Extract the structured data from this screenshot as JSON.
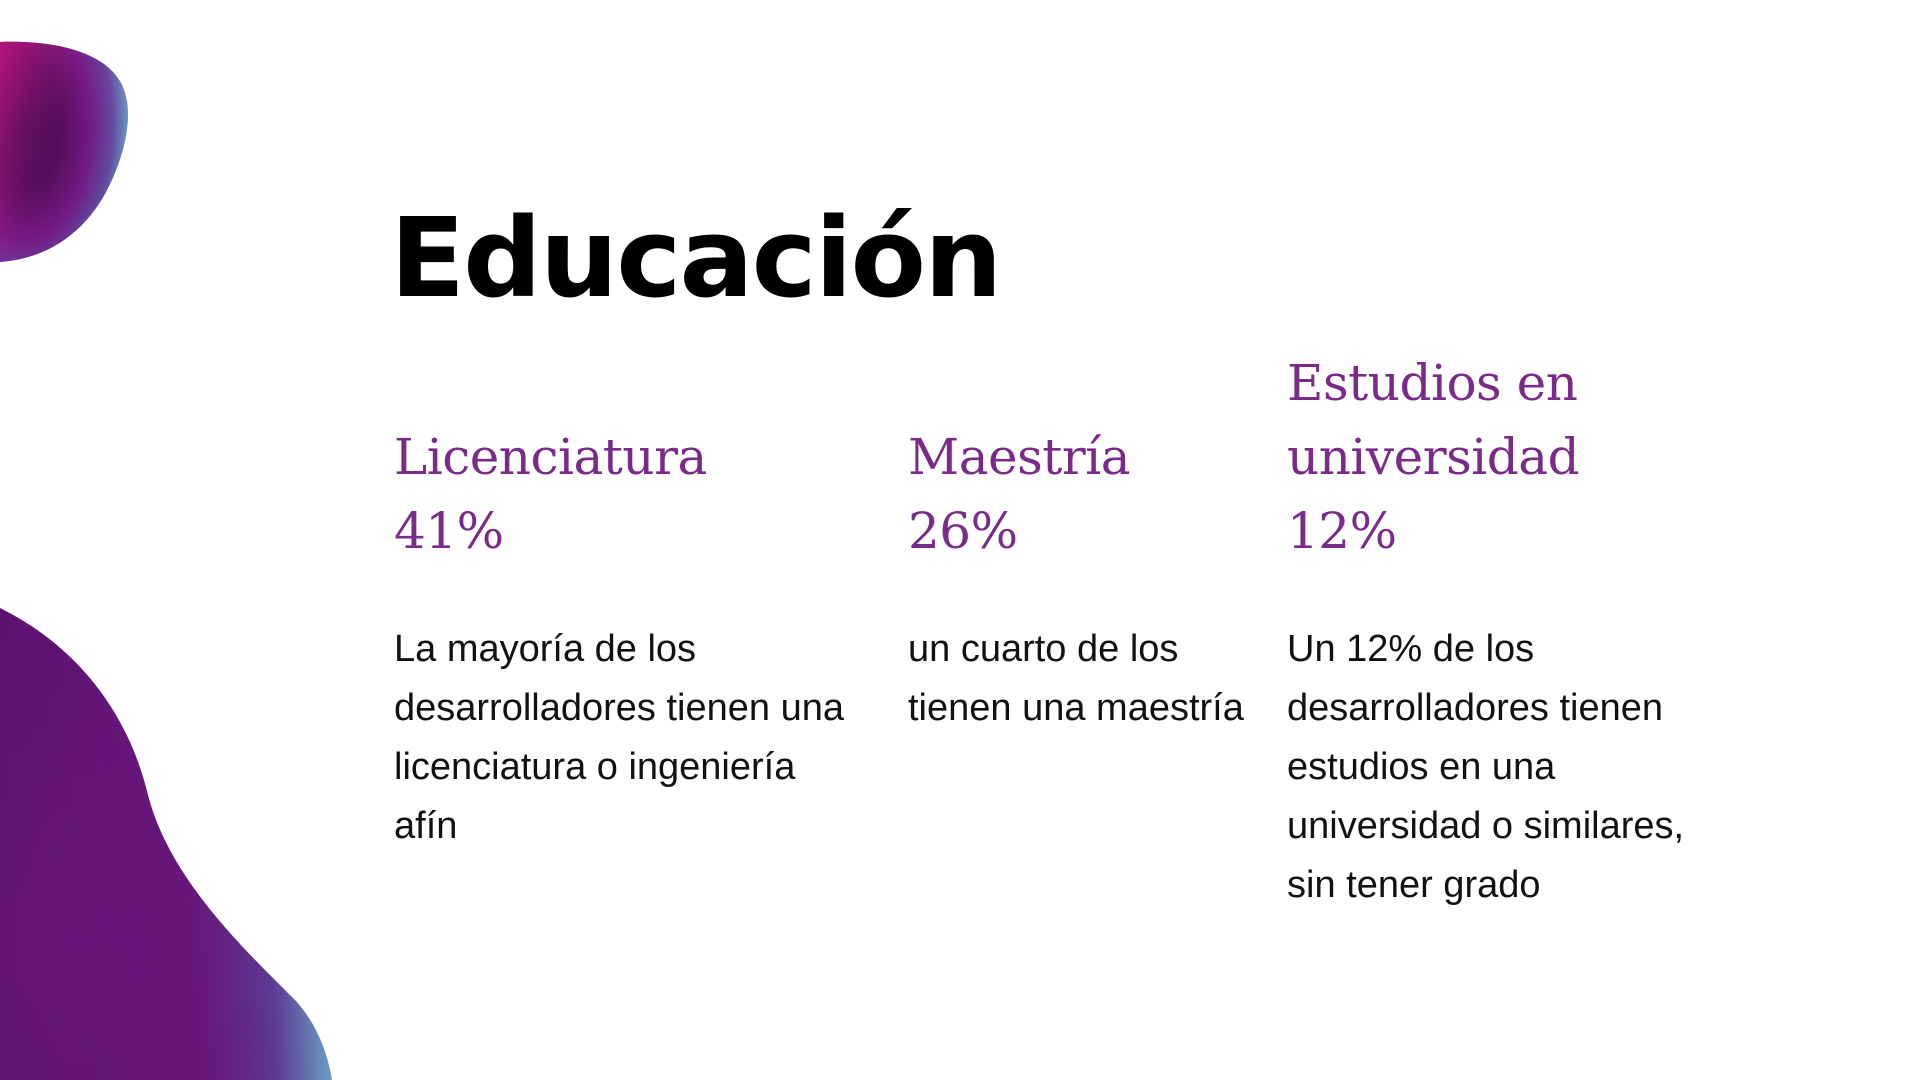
{
  "slide": {
    "title": "Educación",
    "accent_color": "#7a2a88",
    "columns": [
      {
        "heading_lines": [
          "Licenciatura"
        ],
        "percent": "41%",
        "description": "La mayoría de los desarrolladores tienen una licenciatura o ingeniería afín"
      },
      {
        "heading_lines": [
          "Maestría"
        ],
        "percent": "26%",
        "description": "un cuarto de los tienen una maestría"
      },
      {
        "heading_lines": [
          "Estudios en",
          "universidad"
        ],
        "percent": "12%",
        "description": "Un 12% de los desarrolladores tienen estudios en una universidad o similares, sin tener grado"
      }
    ]
  }
}
